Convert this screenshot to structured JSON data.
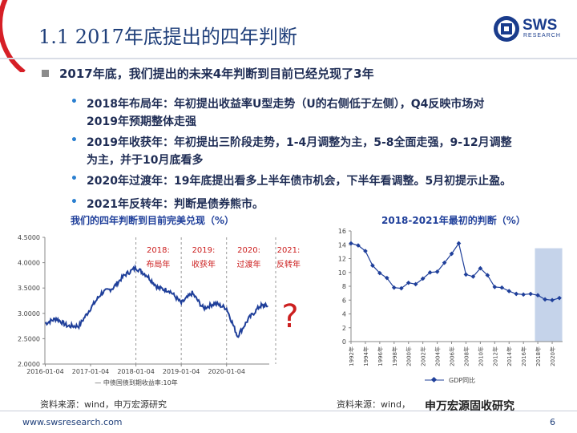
{
  "title": "1.1 2017年底提出的四年判断",
  "logo": {
    "name": "SWS",
    "sub": "RESEARCH",
    "icon": "sws-logo-icon"
  },
  "main_bullet": "2017年底，我们提出的未来4年判断到目前已经兑现了3年",
  "sub_bullets": [
    {
      "line1": "2018年布局年：年初提出收益率U型走势（U的右侧低于左侧），Q4反映市场对",
      "line2": "2019年预期整体走强"
    },
    {
      "line1": "2019年收获年：年初提出三阶段走势，1-4月调整为主，5-8全面走强，9-12月调整",
      "line2": "为主，并于10月底看多"
    },
    {
      "line1": "2020年过渡年：19年底提出看多上半年债市机会，下半年看调整。5月初提示止盈。",
      "line2": ""
    },
    {
      "line1": "2021年反转年：判断是债券熊市。",
      "line2": ""
    }
  ],
  "left_chart": {
    "title": "我们的四年判断到目前完美兑现（%）",
    "source": "资料来源：wind，申万宏源研究",
    "question_mark": "?",
    "phases": [
      {
        "year": "2018:",
        "name": "布局年"
      },
      {
        "year": "2019:",
        "name": "收获年"
      },
      {
        "year": "2020:",
        "name": "过渡年"
      },
      {
        "year": "2021:",
        "name": "反转年"
      }
    ]
  },
  "right_chart": {
    "title": "2018-2021年最初的判断（%）",
    "source": "资料来源：wind，",
    "legend_marker": "diamond-marker"
  },
  "chart_data": [
    {
      "type": "line",
      "title": "我们的四年判断到目前完美兑现（%）",
      "series": [
        {
          "name": "中债国债到期收益率:10年",
          "x": [
            "2016-01-04",
            "2016-04",
            "2016-07",
            "2016-10",
            "2017-01-04",
            "2017-04",
            "2017-07",
            "2017-10",
            "2018-01-04",
            "2018-04",
            "2018-07",
            "2018-10",
            "2019-01-04",
            "2019-04",
            "2019-07",
            "2019-10",
            "2020-01-04",
            "2020-04",
            "2020-07",
            "2020-10",
            "2020-12"
          ],
          "values": [
            2.8,
            2.9,
            2.75,
            2.75,
            3.1,
            3.4,
            3.5,
            3.75,
            3.9,
            3.75,
            3.5,
            3.45,
            3.2,
            3.4,
            3.1,
            3.2,
            3.1,
            2.55,
            2.9,
            3.15,
            3.15
          ]
        }
      ],
      "x_ticks": [
        "2016-01-04",
        "2017-01-04",
        "2018-01-04",
        "2019-01-04",
        "2020-01-04"
      ],
      "y_ticks": [
        "2.0000",
        "2.5000",
        "3.0000",
        "3.5000",
        "4.0000",
        "4.5000"
      ],
      "ylim": [
        2.0,
        4.5
      ],
      "grid": false,
      "legend": "bottom"
    },
    {
      "type": "line",
      "title": "2018-2021年最初的判断（%）",
      "categories": [
        "1992年",
        "1993年",
        "1994年",
        "1995年",
        "1996年",
        "1997年",
        "1998年",
        "1999年",
        "2000年",
        "2001年",
        "2002年",
        "2003年",
        "2004年",
        "2005年",
        "2006年",
        "2007年",
        "2008年",
        "2009年",
        "2010年",
        "2011年",
        "2012年",
        "2013年",
        "2014年",
        "2015年",
        "2016年",
        "2017年",
        "2018年",
        "2019年",
        "2020年",
        "2021年"
      ],
      "x_ticks": [
        "1992年",
        "1994年",
        "1996年",
        "1998年",
        "2000年",
        "2002年",
        "2004年",
        "2006年",
        "2008年",
        "2010年",
        "2012年",
        "2014年",
        "2016年",
        "2018年",
        "2020年"
      ],
      "series": [
        {
          "name": "GDP同比",
          "values": [
            14.2,
            13.9,
            13.1,
            11.0,
            9.9,
            9.2,
            7.8,
            7.7,
            8.5,
            8.3,
            9.1,
            10.0,
            10.1,
            11.4,
            12.7,
            14.2,
            9.7,
            9.4,
            10.6,
            9.6,
            7.9,
            7.8,
            7.3,
            6.9,
            6.8,
            6.9,
            6.7,
            6.1,
            6.0,
            6.3
          ]
        }
      ],
      "y_ticks": [
        "0",
        "2",
        "4",
        "6",
        "8",
        "10",
        "12",
        "14",
        "16"
      ],
      "ylim": [
        0,
        16
      ],
      "shaded_range": [
        "2018年",
        "2021年"
      ],
      "grid": false,
      "legend": "bottom"
    }
  ],
  "footer": {
    "url": "www.swsresearch.com",
    "page": "6",
    "wechat": "申万宏源固收研究"
  }
}
